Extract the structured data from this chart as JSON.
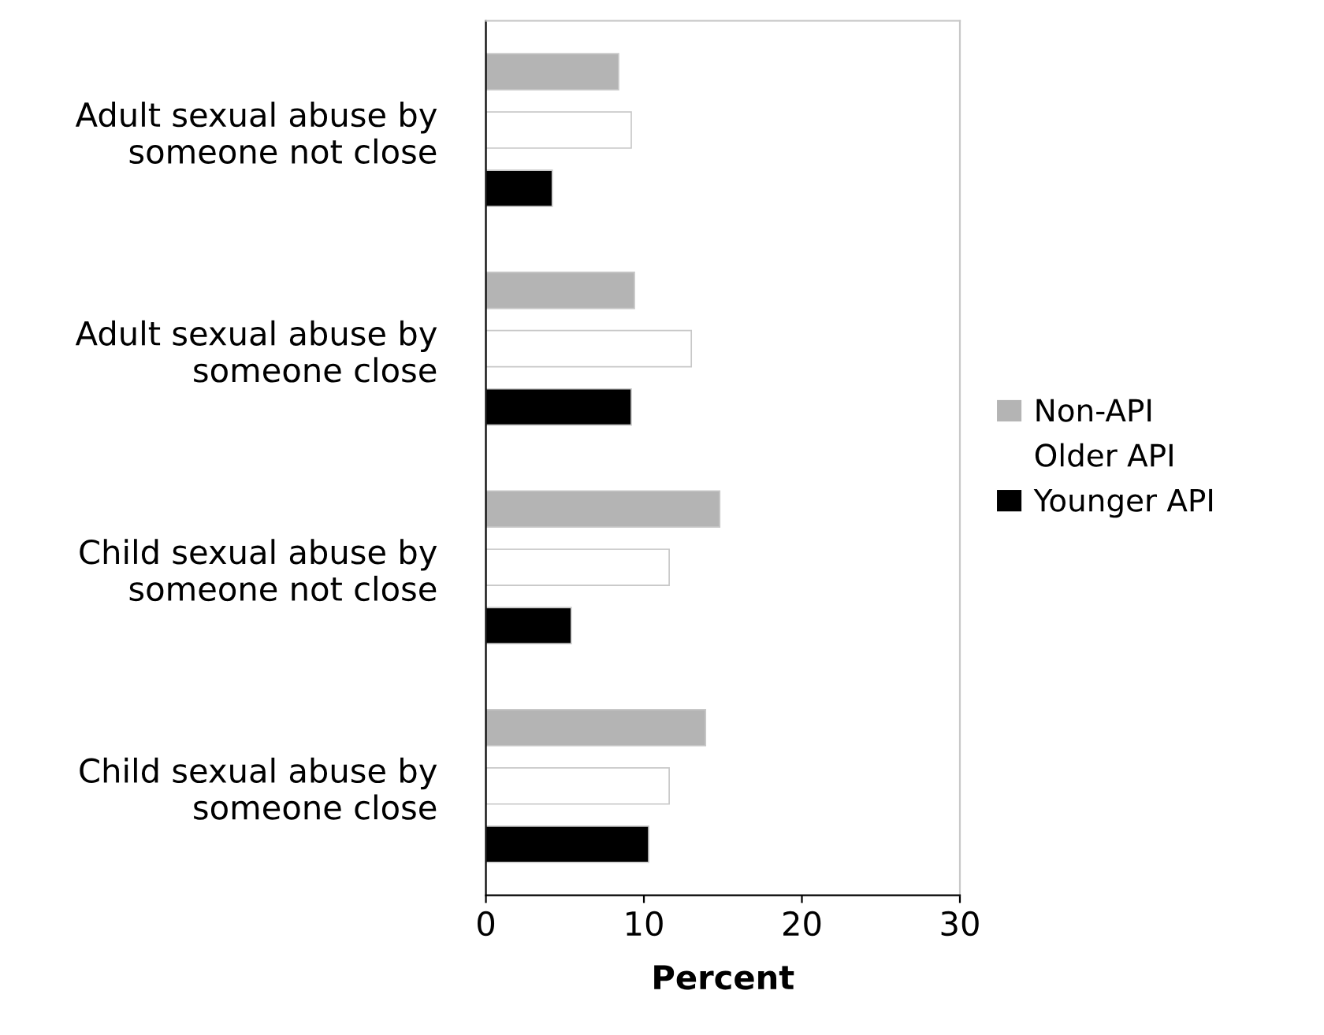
{
  "chart_data": {
    "type": "bar",
    "orientation": "horizontal",
    "xlabel": "Percent",
    "categories": [
      "Adult sexual abuse by\nsomeone not close",
      "Adult sexual abuse by\nsomeone close",
      "Child sexual abuse by\nsomeone not close",
      "Child sexual abuse by\nsomeone close"
    ],
    "series": [
      {
        "name": "Non-API",
        "color": "#b4b4b4",
        "values": [
          8.4,
          9.4,
          14.8,
          13.9
        ]
      },
      {
        "name": "Older API",
        "color": "#ffffff",
        "values": [
          9.2,
          13,
          11.6,
          11.6
        ]
      },
      {
        "name": "Younger API",
        "color": "#000000",
        "values": [
          4.2,
          9.2,
          5.4,
          10.3
        ]
      }
    ],
    "xlim": [
      0,
      30
    ],
    "xticks": [
      0,
      10,
      20,
      30
    ],
    "grid": false,
    "legend": "right"
  }
}
